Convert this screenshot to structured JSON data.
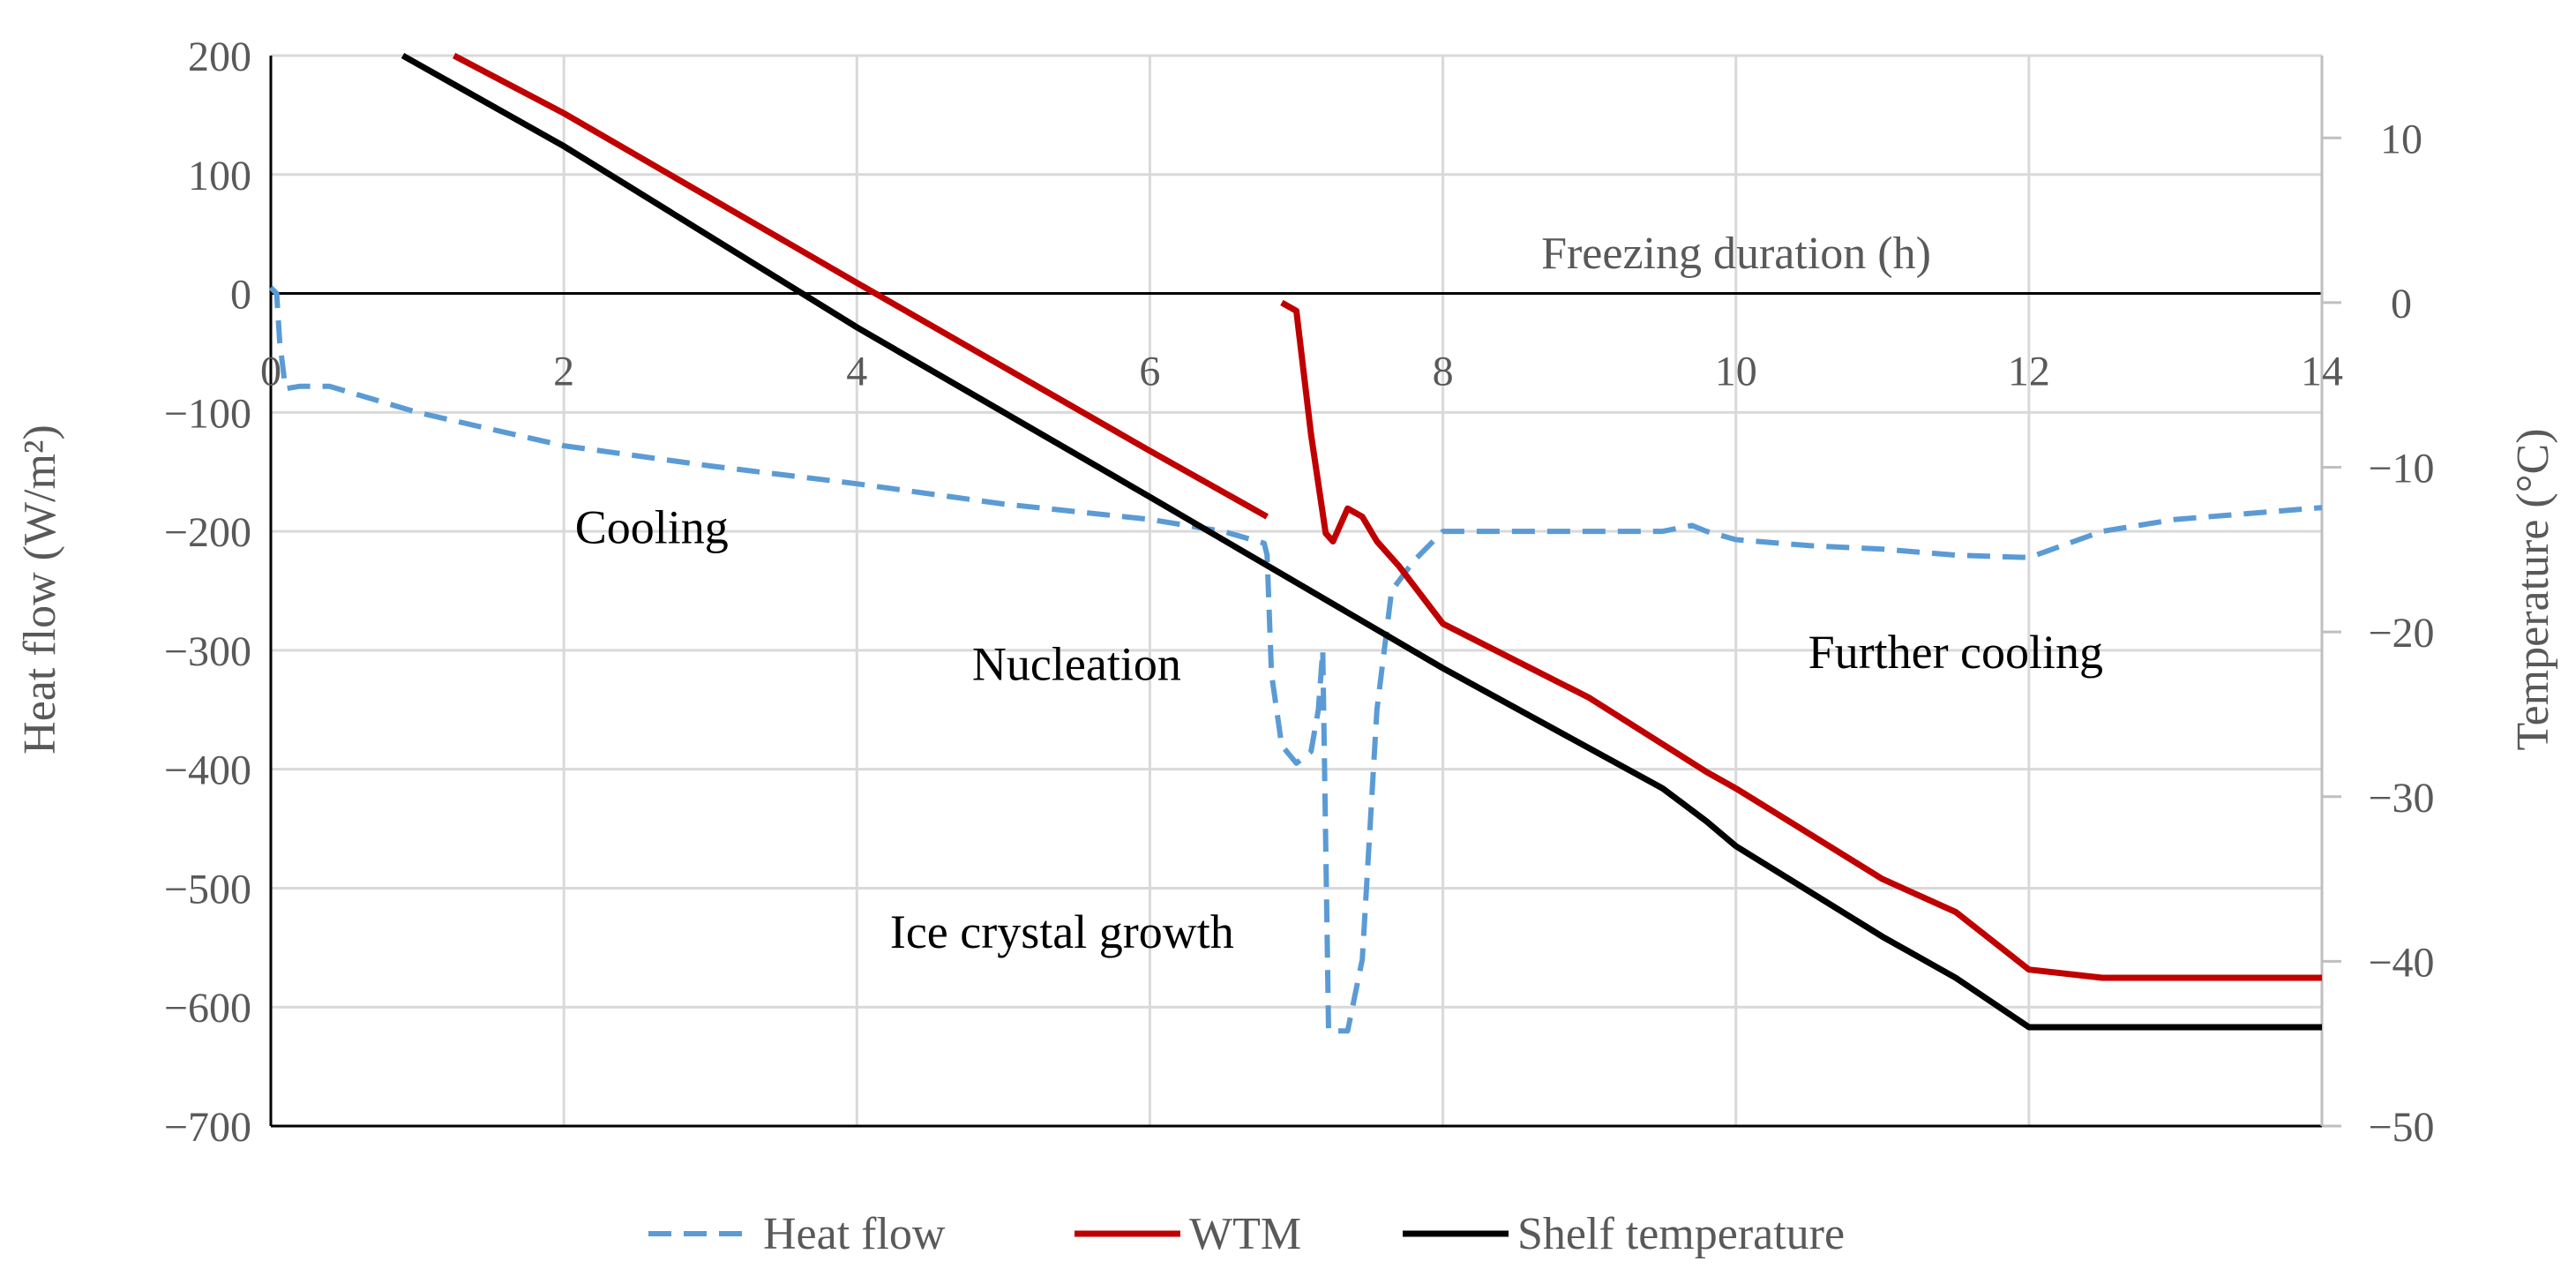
{
  "chart_data": {
    "type": "line",
    "xlabel": "Freezing duration (h)",
    "ylabel_left": "Heat flow (W/m²)",
    "ylabel_right": "Temperature (°C)",
    "xlim": [
      0,
      14
    ],
    "ylim_left": [
      -700,
      200
    ],
    "ylim_right": [
      -50,
      15
    ],
    "x_ticks": [
      0,
      2,
      4,
      6,
      8,
      10,
      12,
      14
    ],
    "y_left_ticks": [
      200,
      100,
      0,
      -100,
      -200,
      -300,
      -400,
      -500,
      -600,
      -700
    ],
    "y_right_ticks": [
      10,
      0,
      -10,
      -20,
      -30,
      -40,
      -50
    ],
    "x_tick_labels": [
      "0",
      "2",
      "4",
      "6",
      "8",
      "10",
      "12",
      "14"
    ],
    "y_left_tick_labels": [
      "200",
      "100",
      "0",
      "−100",
      "−200",
      "−300",
      "−400",
      "−500",
      "−600",
      "−700"
    ],
    "y_right_tick_labels": [
      "10",
      "0",
      "−10",
      "−20",
      "−30",
      "−40",
      "−50"
    ],
    "grid": true,
    "legend_position": "bottom",
    "annotations": [
      {
        "text": "Cooling",
        "x": 2.6,
        "y": -210
      },
      {
        "text": "Nucleation",
        "x": 5.5,
        "y": -325
      },
      {
        "text": "Further cooling",
        "x": 11.5,
        "y": -315
      },
      {
        "text": "Ice crystal growth",
        "x": 5.4,
        "y": -550
      }
    ],
    "series": [
      {
        "name": "Heat flow",
        "axis": "left",
        "color": "#5b9bd5",
        "dash": true,
        "points": [
          [
            0.0,
            5
          ],
          [
            0.04,
            0
          ],
          [
            0.06,
            -40
          ],
          [
            0.1,
            -80
          ],
          [
            0.2,
            -78
          ],
          [
            0.4,
            -78
          ],
          [
            1,
            -100
          ],
          [
            2,
            -128
          ],
          [
            3,
            -145
          ],
          [
            4,
            -160
          ],
          [
            5,
            -177
          ],
          [
            6,
            -190
          ],
          [
            6.5,
            -200
          ],
          [
            6.78,
            -210
          ],
          [
            6.8,
            -220
          ],
          [
            6.83,
            -320
          ],
          [
            6.9,
            -380
          ],
          [
            7.0,
            -395
          ],
          [
            7.1,
            -385
          ],
          [
            7.15,
            -350
          ],
          [
            7.18,
            -300
          ],
          [
            7.22,
            -620
          ],
          [
            7.35,
            -620
          ],
          [
            7.45,
            -560
          ],
          [
            7.55,
            -350
          ],
          [
            7.65,
            -250
          ],
          [
            7.8,
            -225
          ],
          [
            8.0,
            -200
          ],
          [
            9.0,
            -200
          ],
          [
            9.5,
            -200
          ],
          [
            9.7,
            -195
          ],
          [
            9.8,
            -200
          ],
          [
            10,
            -207
          ],
          [
            10.5,
            -212
          ],
          [
            11,
            -215
          ],
          [
            11.5,
            -220
          ],
          [
            12.0,
            -222
          ],
          [
            12.5,
            -200
          ],
          [
            13,
            -190
          ],
          [
            13.5,
            -185
          ],
          [
            14,
            -180
          ]
        ]
      },
      {
        "name": "WTM",
        "axis": "right",
        "color": "#c00000",
        "dash": false,
        "points": [
          [
            1.25,
            15.0
          ],
          [
            2,
            11.5
          ],
          [
            4,
            1.2
          ],
          [
            6,
            -9.0
          ],
          [
            6.8,
            -13.0
          ],
          null,
          [
            6.9,
            0.0
          ],
          [
            7.0,
            -0.5
          ],
          [
            7.1,
            -8.0
          ],
          [
            7.2,
            -14.0
          ],
          [
            7.25,
            -14.5
          ],
          [
            7.35,
            -12.5
          ],
          [
            7.45,
            -13.0
          ],
          [
            7.55,
            -14.5
          ],
          [
            7.7,
            -16.0
          ],
          [
            8.0,
            -19.5
          ],
          [
            9.0,
            -24.0
          ],
          [
            9.8,
            -28.5
          ],
          [
            10,
            -29.5
          ],
          [
            11,
            -35.0
          ],
          [
            11.5,
            -37.0
          ],
          [
            12,
            -40.5
          ],
          [
            12.5,
            -41.0
          ],
          [
            14,
            -41.0
          ]
        ]
      },
      {
        "name": "Shelf temperature",
        "axis": "right",
        "color": "#000000",
        "dash": false,
        "points": [
          [
            0.9,
            15.0
          ],
          [
            2,
            9.5
          ],
          [
            4,
            -1.5
          ],
          [
            6,
            -11.8
          ],
          [
            8,
            -22.2
          ],
          [
            9.5,
            -29.5
          ],
          [
            9.8,
            -31.5
          ],
          [
            10,
            -33.0
          ],
          [
            11,
            -38.5
          ],
          [
            11.5,
            -41.0
          ],
          [
            12,
            -44.0
          ],
          [
            14,
            -44.0
          ]
        ]
      }
    ]
  }
}
